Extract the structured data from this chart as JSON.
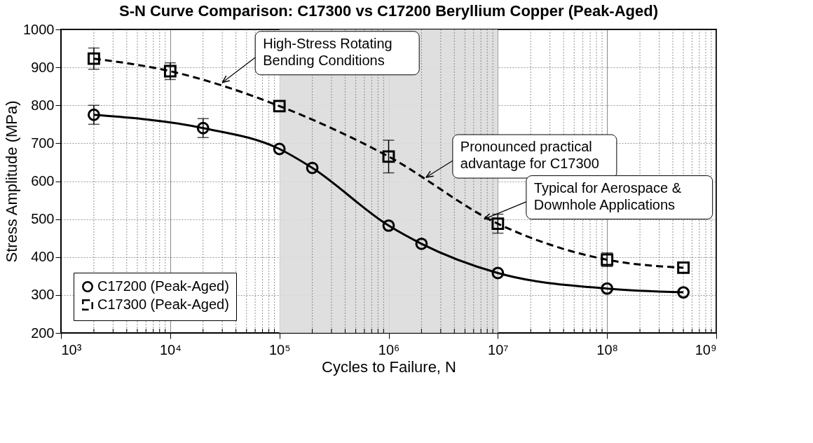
{
  "chart_data": {
    "type": "line",
    "title": "S-N Curve Comparison: C17300 vs C17200 Beryllium Copper (Peak-Aged)",
    "xlabel": "Cycles to Failure, N",
    "ylabel": "Stress Amplitude (MPa)",
    "log": "x",
    "xlim": [
      1000,
      1000000000
    ],
    "xticks": [
      {
        "value": 1000,
        "label": "10³"
      },
      {
        "value": 10000,
        "label": "10⁴"
      },
      {
        "value": 100000,
        "label": "10⁵"
      },
      {
        "value": 1000000,
        "label": "10⁶"
      },
      {
        "value": 10000000,
        "label": "10⁷"
      },
      {
        "value": 100000000,
        "label": "10⁸"
      },
      {
        "value": 1000000000,
        "label": "10⁹"
      }
    ],
    "ylim": [
      200,
      1000
    ],
    "yticks": [
      200,
      300,
      400,
      500,
      600,
      700,
      800,
      900,
      1000
    ],
    "grid": true,
    "legend": "bottom left",
    "series": [
      {
        "name": "C17200 (Peak-Aged)",
        "color": "#000000",
        "marker": "circle",
        "line_style": "solid",
        "x": [
          2000,
          20000,
          100000,
          200000,
          1000000,
          2000000,
          10000000,
          100000000,
          500000000
        ],
        "values": [
          775,
          740,
          685,
          635,
          483,
          435,
          358,
          317,
          307
        ],
        "errors": [
          25,
          25,
          null,
          null,
          null,
          null,
          null,
          null,
          null
        ]
      },
      {
        "name": "C17300 (Peak-Aged)",
        "color": "#000000",
        "marker": "square",
        "line_style": "dashed",
        "x": [
          2000,
          10000,
          100000,
          1000000,
          10000000,
          100000000,
          500000000
        ],
        "values": [
          923,
          890,
          798,
          665,
          488,
          393,
          372
        ],
        "errors": [
          28,
          22,
          null,
          43,
          25,
          18,
          null
        ]
      }
    ],
    "bands": [
      {
        "axis": "x",
        "from": 100000,
        "to": 10000000,
        "color": "#dcdcdc"
      }
    ],
    "annotations": [
      {
        "text": "High-Stress Rotating\nBending Conditions",
        "x": 30000,
        "y": 860
      },
      {
        "text": "Pronounced practical\nadvantage for C17300",
        "x": 2200000,
        "y": 610
      },
      {
        "text": "Typical for Aerospace &\nDownhole Applications",
        "x": 7500000,
        "y": 500
      }
    ]
  }
}
